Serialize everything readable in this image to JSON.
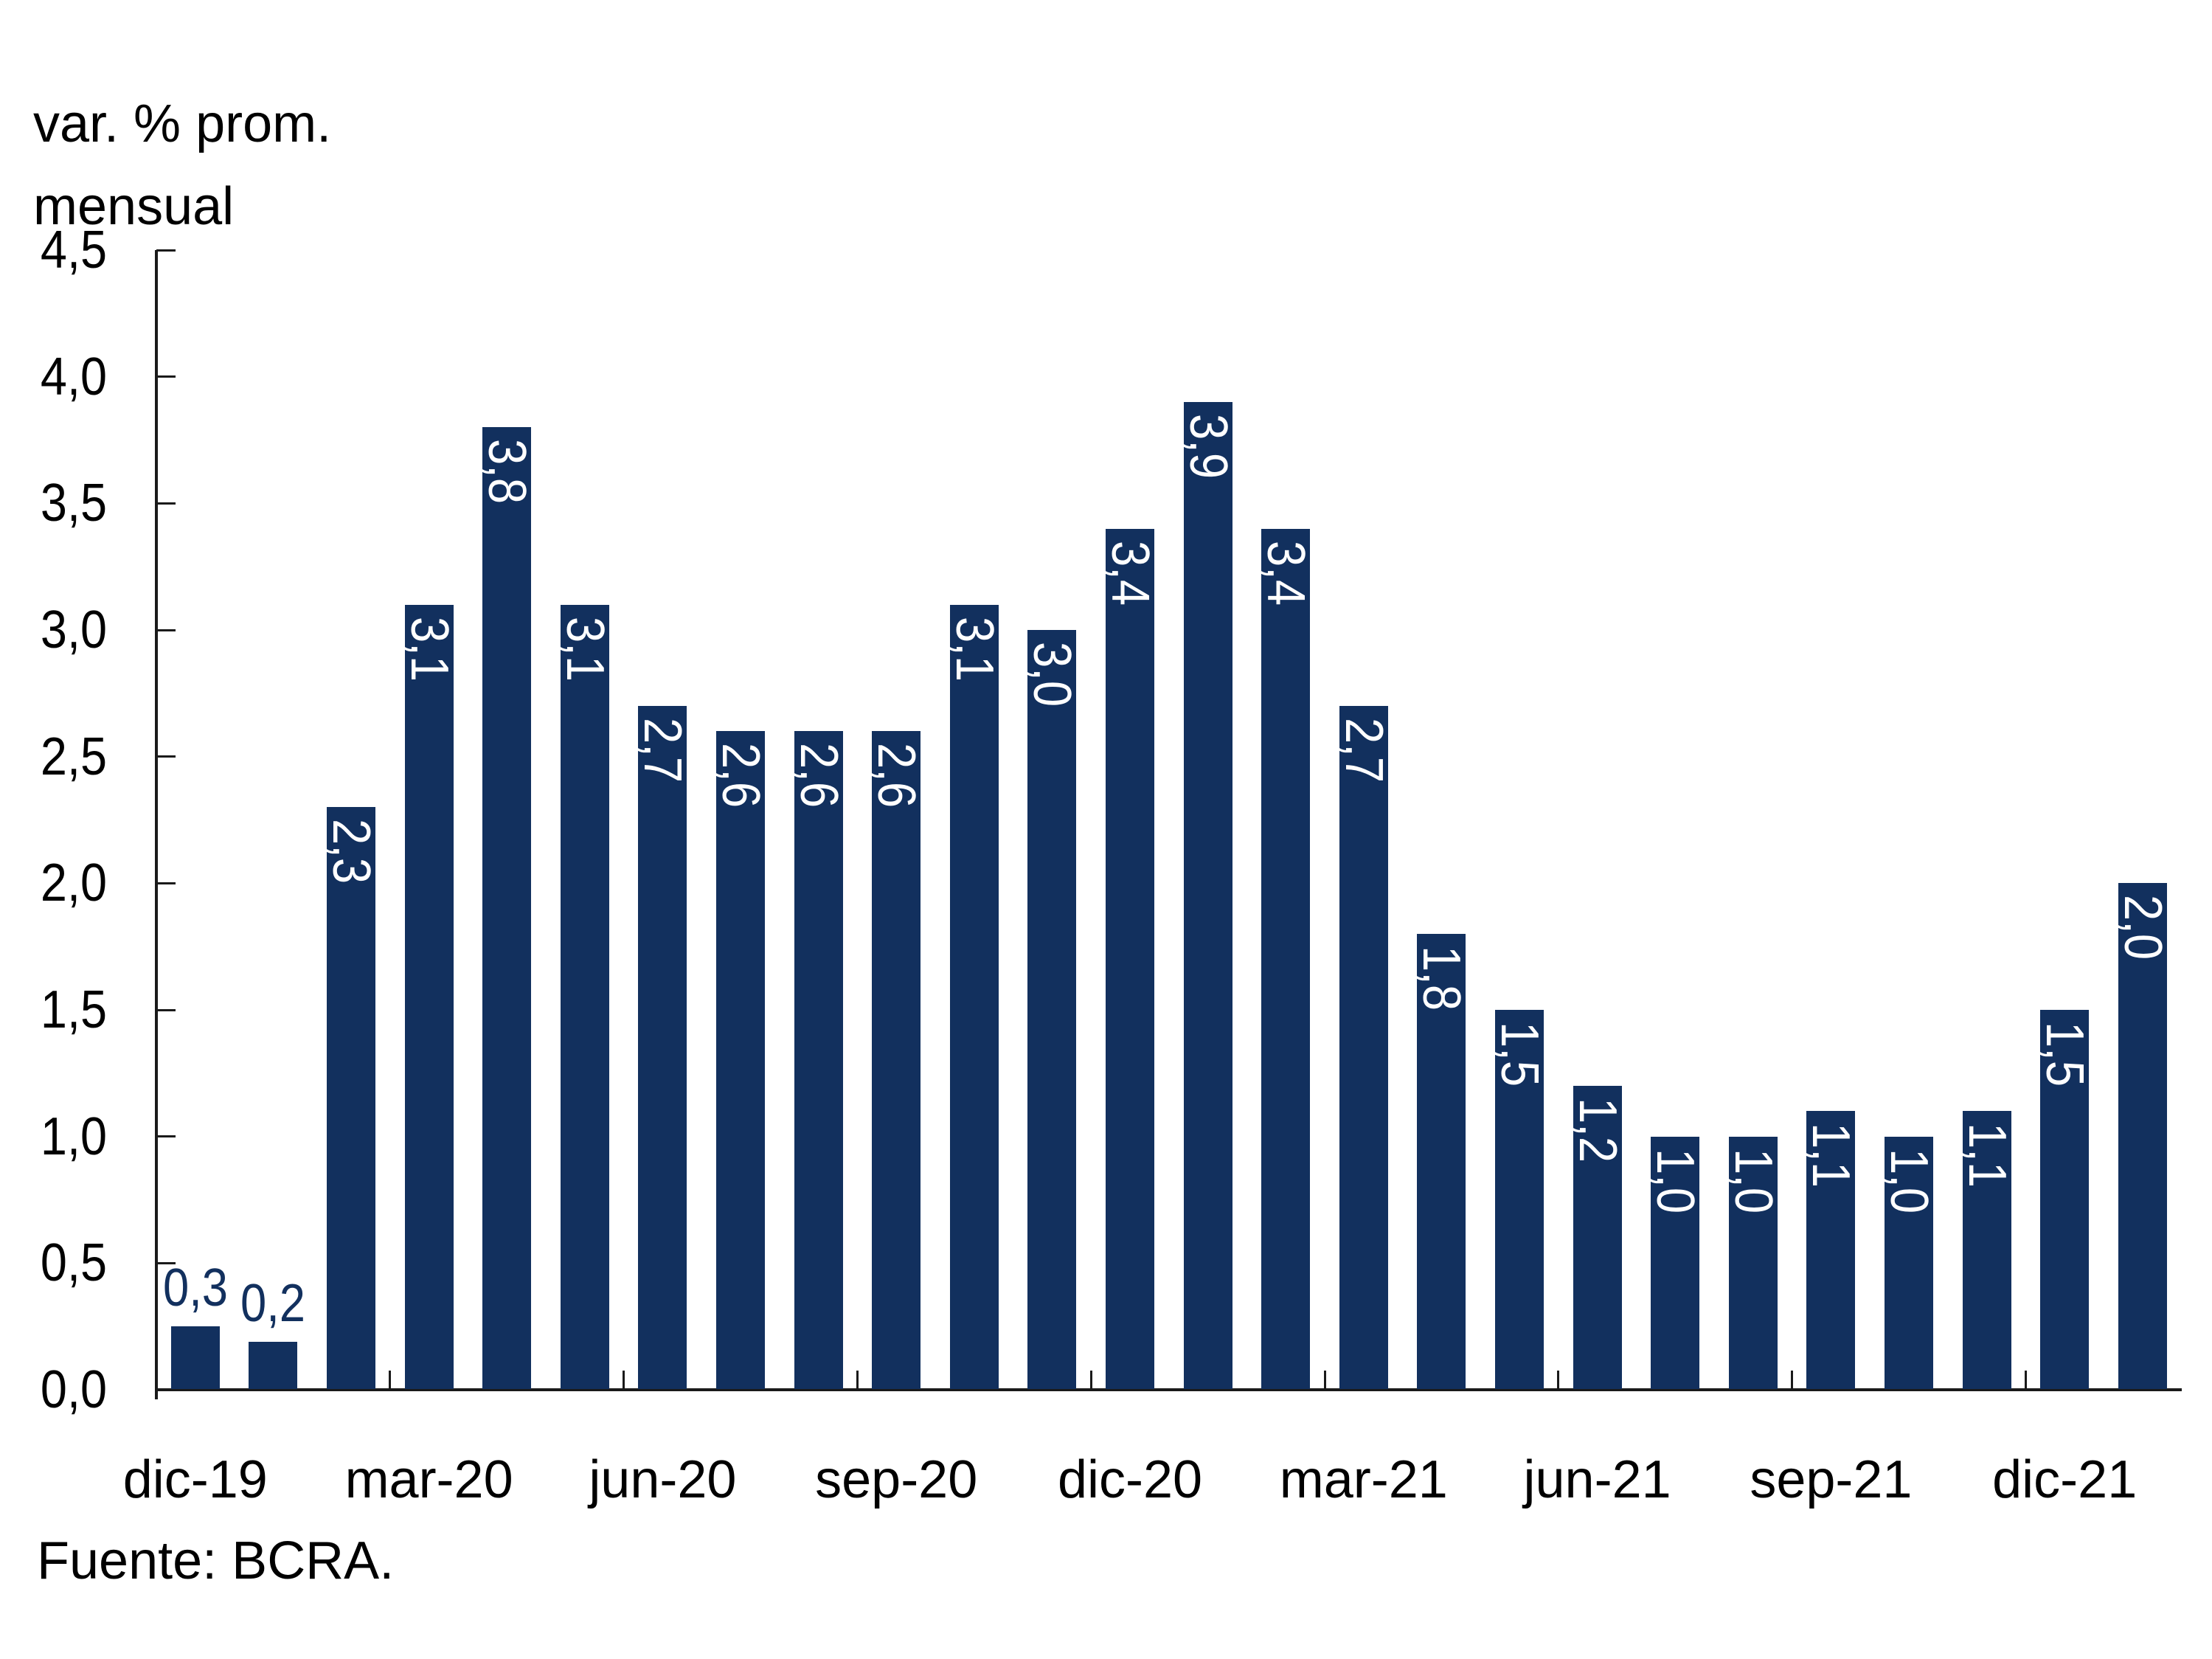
{
  "title": {
    "line1": "var. % prom.",
    "line2": "mensual"
  },
  "source": "Fuente: BCRA.",
  "colors": {
    "bar": "#12305E",
    "axis": "#1A1A1A",
    "text": "#000000",
    "bar_label_inside": "#FFFFFF",
    "bar_label_outside": "#12305E"
  },
  "chart_data": {
    "type": "bar",
    "title": "var. % prom. mensual",
    "source": "Fuente: BCRA.",
    "grid": false,
    "legend": null,
    "ylim": [
      0,
      4.5
    ],
    "y_ticks": [
      0,
      0.5,
      1.0,
      1.5,
      2.0,
      2.5,
      3.0,
      3.5,
      4.0,
      4.5
    ],
    "y_tick_labels": [
      "0,0",
      "0,5",
      "1,0",
      "1,5",
      "2,0",
      "2,5",
      "3,0",
      "3,5",
      "4,0",
      "4,5"
    ],
    "categories": [
      "dic-19",
      "ene-20",
      "feb-20",
      "mar-20",
      "abr-20",
      "may-20",
      "jun-20",
      "jul-20",
      "ago-20",
      "sep-20",
      "oct-20",
      "nov-20",
      "dic-20",
      "ene-21",
      "feb-21",
      "mar-21",
      "abr-21",
      "may-21",
      "jun-21",
      "jul-21",
      "ago-21",
      "sep-21",
      "oct-21",
      "nov-21",
      "dic-21",
      "ene-22"
    ],
    "values": [
      0.3,
      0.2,
      2.3,
      3.1,
      3.8,
      3.1,
      2.7,
      2.6,
      2.6,
      2.6,
      3.1,
      3.0,
      3.4,
      3.9,
      3.4,
      2.7,
      1.8,
      1.5,
      1.2,
      1.0,
      1.0,
      1.1,
      1.0,
      1.1,
      1.5,
      2.0
    ],
    "bar_value_labels": [
      "0,3",
      "0,2",
      "2,3",
      "3,1",
      "3,8",
      "3,1",
      "2,7",
      "2,6",
      "2,6",
      "2,6",
      "3,1",
      "3,0",
      "3,4",
      "3,9",
      "3,4",
      "2,7",
      "1,8",
      "1,5",
      "1,2",
      "1,0",
      "1,0",
      "1,1",
      "1,0",
      "1,1",
      "1,5",
      "2,0"
    ],
    "render_heights": [
      0.25,
      0.19,
      2.3,
      3.1,
      3.8,
      3.1,
      2.7,
      2.6,
      2.6,
      2.6,
      3.1,
      3.0,
      3.4,
      3.9,
      3.4,
      2.7,
      1.8,
      1.5,
      1.2,
      1.0,
      1.0,
      1.1,
      1.0,
      1.1,
      1.5,
      2.0
    ],
    "x_axis_labels": [
      "dic-19",
      "mar-20",
      "jun-20",
      "sep-20",
      "dic-20",
      "mar-21",
      "jun-21",
      "sep-21",
      "dic-21"
    ],
    "x_axis_label_category_indices": [
      0,
      3,
      6,
      9,
      12,
      15,
      18,
      21,
      24
    ],
    "x_group_tick_every": 3
  }
}
